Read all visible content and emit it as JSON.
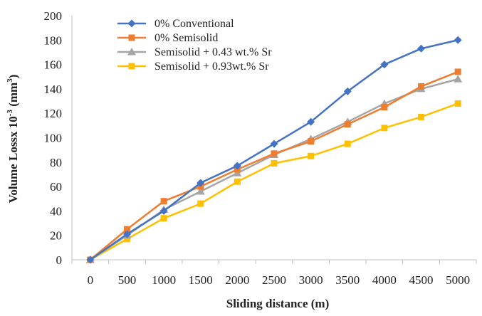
{
  "chart_data": {
    "type": "line",
    "title": "",
    "xlabel": "Sliding distance (m)",
    "ylabel": "Volume Lossx 10-3 (mm3)",
    "ylabel_parts": {
      "main": "Volume Lossx 10",
      "exp1": "-3",
      "open": " (mm",
      "exp2": "3",
      "close": ")"
    },
    "categories": [
      "0",
      "500",
      "1000",
      "1500",
      "2000",
      "2500",
      "3000",
      "3500",
      "4000",
      "4500",
      "5000"
    ],
    "ylim": [
      0,
      200
    ],
    "yticks": [
      "0",
      "20",
      "40",
      "60",
      "80",
      "100",
      "120",
      "140",
      "160",
      "180",
      "200"
    ],
    "grid": false,
    "legend_position": "top-left",
    "series": [
      {
        "name": "0% Conventional",
        "color": "#4472c4",
        "marker": "diamond",
        "values": [
          0,
          21,
          40,
          63,
          77,
          95,
          113,
          138,
          160,
          173,
          180
        ]
      },
      {
        "name": "0% Semisolid",
        "color": "#ed7d31",
        "marker": "square",
        "values": [
          0,
          25,
          48,
          60,
          74,
          87,
          97,
          111,
          125,
          142,
          154
        ]
      },
      {
        "name": "Semisolid + 0.43 wt.% Sr",
        "color": "#a5a5a5",
        "marker": "triangle",
        "values": [
          0,
          20,
          41,
          56,
          71,
          86,
          99,
          113,
          128,
          140,
          148
        ]
      },
      {
        "name": "Semisolid + 0.93wt.% Sr",
        "color": "#ffc000",
        "marker": "square",
        "values": [
          0,
          17,
          34,
          46,
          64,
          79,
          85,
          95,
          108,
          117,
          128
        ]
      }
    ]
  }
}
